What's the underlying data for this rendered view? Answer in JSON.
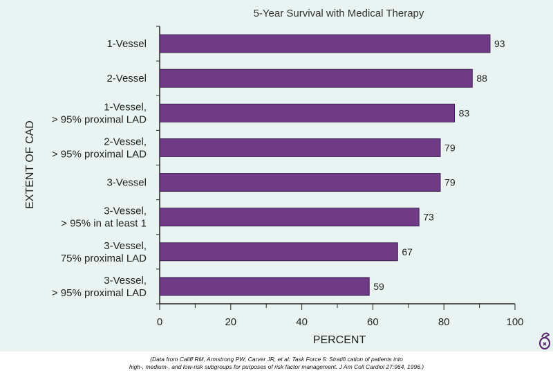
{
  "chart_data": {
    "type": "bar",
    "orientation": "horizontal",
    "title": "5-Year Survival with Medical Therapy",
    "xlabel": "PERCENT",
    "ylabel": "EXTENT OF CAD",
    "xlim": [
      0,
      100
    ],
    "xticks": [
      "0",
      "20",
      "40",
      "60",
      "80",
      "100"
    ],
    "categories": [
      [
        "1-Vessel"
      ],
      [
        "2-Vessel"
      ],
      [
        "1-Vessel,",
        "> 95% proximal LAD"
      ],
      [
        "2-Vessel,",
        "> 95% proximal LAD"
      ],
      [
        "3-Vessel"
      ],
      [
        "3-Vessel,",
        "> 95% in at least 1"
      ],
      [
        "3-Vessel,",
        "75% proximal LAD"
      ],
      [
        "3-Vessel,",
        "> 95% proximal LAD"
      ]
    ],
    "values": [
      93,
      88,
      83,
      79,
      79,
      73,
      67,
      59
    ],
    "grid": false,
    "bar_color": "#6f3a86",
    "background_color": "#e9f3f1"
  },
  "source": {
    "line1": "(Data from Califf RM, Armstrong PW, Carver JR, et al: Task Force 5: Stratifi cation of patients into",
    "line2": "high-, medium-, and low-risk subgroups for purposes of risk factor management. J Am Coll Cardiol 27:964, 1996.)"
  },
  "logo_icon": "publisher-logo-icon"
}
